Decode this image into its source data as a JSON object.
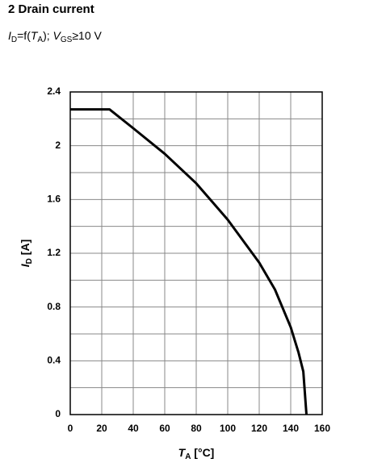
{
  "chart_data": {
    "type": "line",
    "title": "2 Drain current",
    "subtitle_parts": [
      "I",
      "D",
      "=f(",
      "T",
      "A",
      "); ",
      "V",
      "GS",
      "≥10 V"
    ],
    "xlabel_parts": [
      "T",
      "A",
      " [°C]"
    ],
    "ylabel_parts": [
      "I",
      "D",
      " [A]"
    ],
    "x": [
      0,
      25,
      40,
      60,
      80,
      100,
      120,
      130,
      140,
      145,
      148,
      150
    ],
    "values": [
      2.27,
      2.27,
      2.13,
      1.94,
      1.72,
      1.45,
      1.13,
      0.93,
      0.65,
      0.46,
      0.32,
      0
    ],
    "color": "#000000",
    "xlim": [
      0,
      160
    ],
    "xticks": [
      0,
      20,
      40,
      60,
      80,
      100,
      120,
      140,
      160
    ],
    "ylim": [
      0,
      2.4
    ],
    "yticks": [
      0,
      0.4,
      0.8,
      1.2,
      1.6,
      2,
      2.4
    ],
    "minor_yticks": [
      0.2,
      0.6,
      1,
      1.4,
      1.8,
      2.2
    ],
    "grid": true
  }
}
